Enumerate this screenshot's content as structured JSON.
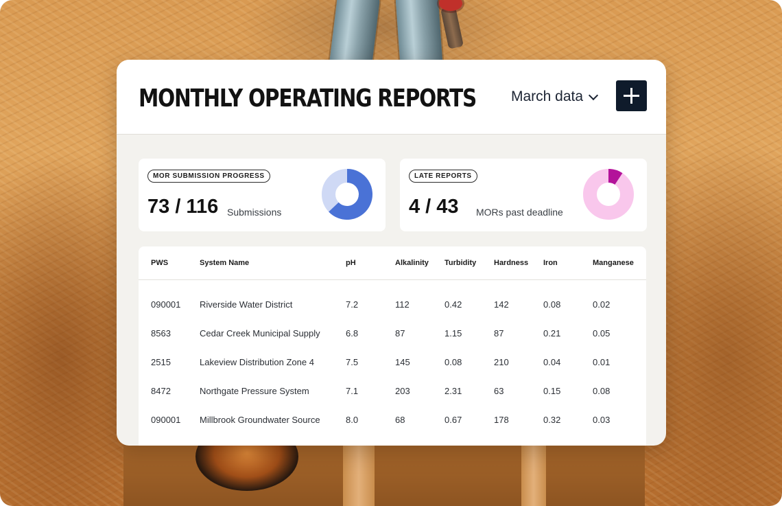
{
  "header": {
    "title": "MONTHLY OPERATING REPORTS",
    "month_select": "March data",
    "add_button_icon": "plus-icon"
  },
  "stats": [
    {
      "label": "MOR SUBMISSION PROGRESS",
      "value": "73 / 116",
      "caption": "Submissions",
      "progress": {
        "done": 73,
        "total": 116
      },
      "colors": {
        "fill": "#4a72d6",
        "track": "#cfd9f5"
      }
    },
    {
      "label": "LATE REPORTS",
      "value": "4 / 43",
      "caption": "MORs past deadline",
      "progress": {
        "done": 4,
        "total": 43
      },
      "colors": {
        "fill": "#b3139a",
        "track": "#f9c7ec"
      }
    }
  ],
  "table": {
    "columns": [
      "PWS",
      "System Name",
      "pH",
      "Alkalinity",
      "Turbidity",
      "Hardness",
      "Iron",
      "Manganese"
    ],
    "rows": [
      [
        "090001",
        "Riverside Water District",
        "7.2",
        "112",
        "0.42",
        "142",
        "0.08",
        "0.02"
      ],
      [
        "8563",
        "Cedar Creek Municipal Supply",
        "6.8",
        "87",
        "1.15",
        "87",
        "0.21",
        "0.05"
      ],
      [
        "2515",
        "Lakeview Distribution Zone 4",
        "7.5",
        "145",
        "0.08",
        "210",
        "0.04",
        "0.01"
      ],
      [
        "8472",
        "Northgate Pressure System",
        "7.1",
        "203",
        "2.31",
        "63",
        "0.15",
        "0.08"
      ],
      [
        "090001",
        "Millbrook Groundwater Source",
        "8.0",
        "68",
        "0.67",
        "178",
        "0.32",
        "0.03"
      ]
    ]
  },
  "colors": {
    "header_bg": "#ffffff",
    "panel_bg": "#f3f2ee",
    "add_button_bg": "#0f1b2b"
  }
}
